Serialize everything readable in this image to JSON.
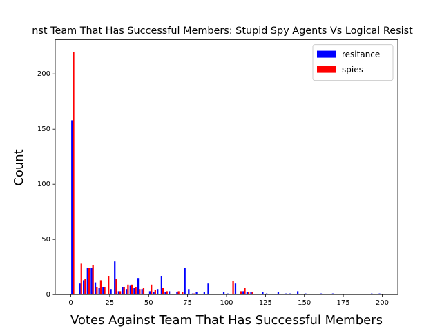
{
  "chart_data": {
    "type": "histogram",
    "title": "nst Team That Has Successful Members: Stupid Spy Agents Vs Logical Resist",
    "x_label": "Votes Against Team That Has Successful Members",
    "y_label": "Count",
    "bins": [
      0,
      2.5,
      5,
      7.5,
      10,
      12.5,
      15,
      17.5,
      20,
      22.5,
      25,
      27.5,
      30,
      32.5,
      35,
      37.5,
      40,
      42.5,
      45,
      47.5,
      50,
      52.5,
      55,
      57.5,
      60,
      62.5,
      65,
      67.5,
      70,
      72.5,
      75,
      77.5,
      80,
      82.5,
      85,
      87.5,
      90,
      92.5,
      95,
      97.5,
      100,
      102.5,
      105,
      107.5,
      110,
      112.5,
      115,
      117.5,
      120,
      122.5,
      125,
      127.5,
      130,
      132.5,
      135,
      137.5,
      140,
      142.5,
      145,
      147.5,
      150,
      152.5,
      155,
      157.5,
      160,
      162.5,
      165,
      167.5,
      170,
      172.5,
      175,
      177.5,
      180,
      182.5,
      185,
      187.5,
      190,
      192.5,
      195,
      197.5,
      200
    ],
    "series": [
      {
        "name": "resitance",
        "color": "#0000ff",
        "values": [
          158,
          0,
          10,
          13,
          24,
          24,
          11,
          6,
          7,
          0,
          5,
          30,
          3,
          7,
          5,
          8,
          6,
          15,
          5,
          0,
          3,
          2,
          5,
          17,
          2,
          3,
          0,
          2,
          0,
          24,
          5,
          1,
          2,
          0,
          2,
          10,
          0,
          0,
          0,
          2,
          1,
          0,
          10,
          0,
          3,
          2,
          2,
          0,
          0,
          2,
          1,
          0,
          0,
          2,
          0,
          1,
          1,
          0,
          3,
          0,
          1,
          0,
          0,
          0,
          1,
          0,
          0,
          1,
          0,
          0,
          0,
          0,
          0,
          0,
          0,
          0,
          0,
          1,
          0,
          1
        ]
      },
      {
        "name": "spies",
        "color": "#ff0000",
        "values": [
          220,
          0,
          28,
          14,
          24,
          27,
          7,
          13,
          7,
          17,
          0,
          14,
          3,
          7,
          9,
          9,
          7,
          5,
          6,
          0,
          9,
          4,
          0,
          6,
          3,
          0,
          0,
          3,
          2,
          0,
          0,
          1,
          0,
          0,
          0,
          0,
          0,
          0,
          0,
          0,
          0,
          12,
          0,
          3,
          6,
          2,
          2,
          0,
          0,
          0,
          0,
          0,
          0,
          0,
          0,
          0,
          0,
          0,
          0,
          0,
          0,
          0,
          0,
          0,
          0,
          0,
          0,
          0,
          0,
          0,
          0,
          0,
          0,
          0,
          0,
          0,
          0,
          0,
          0,
          0
        ]
      }
    ],
    "xlim": [
      -10,
      210
    ],
    "ylim": [
      0,
      231
    ],
    "xticks": [
      0,
      25,
      50,
      75,
      100,
      125,
      150,
      175,
      200
    ],
    "yticks": [
      0,
      50,
      100,
      150,
      200
    ],
    "legend": "upper right"
  }
}
